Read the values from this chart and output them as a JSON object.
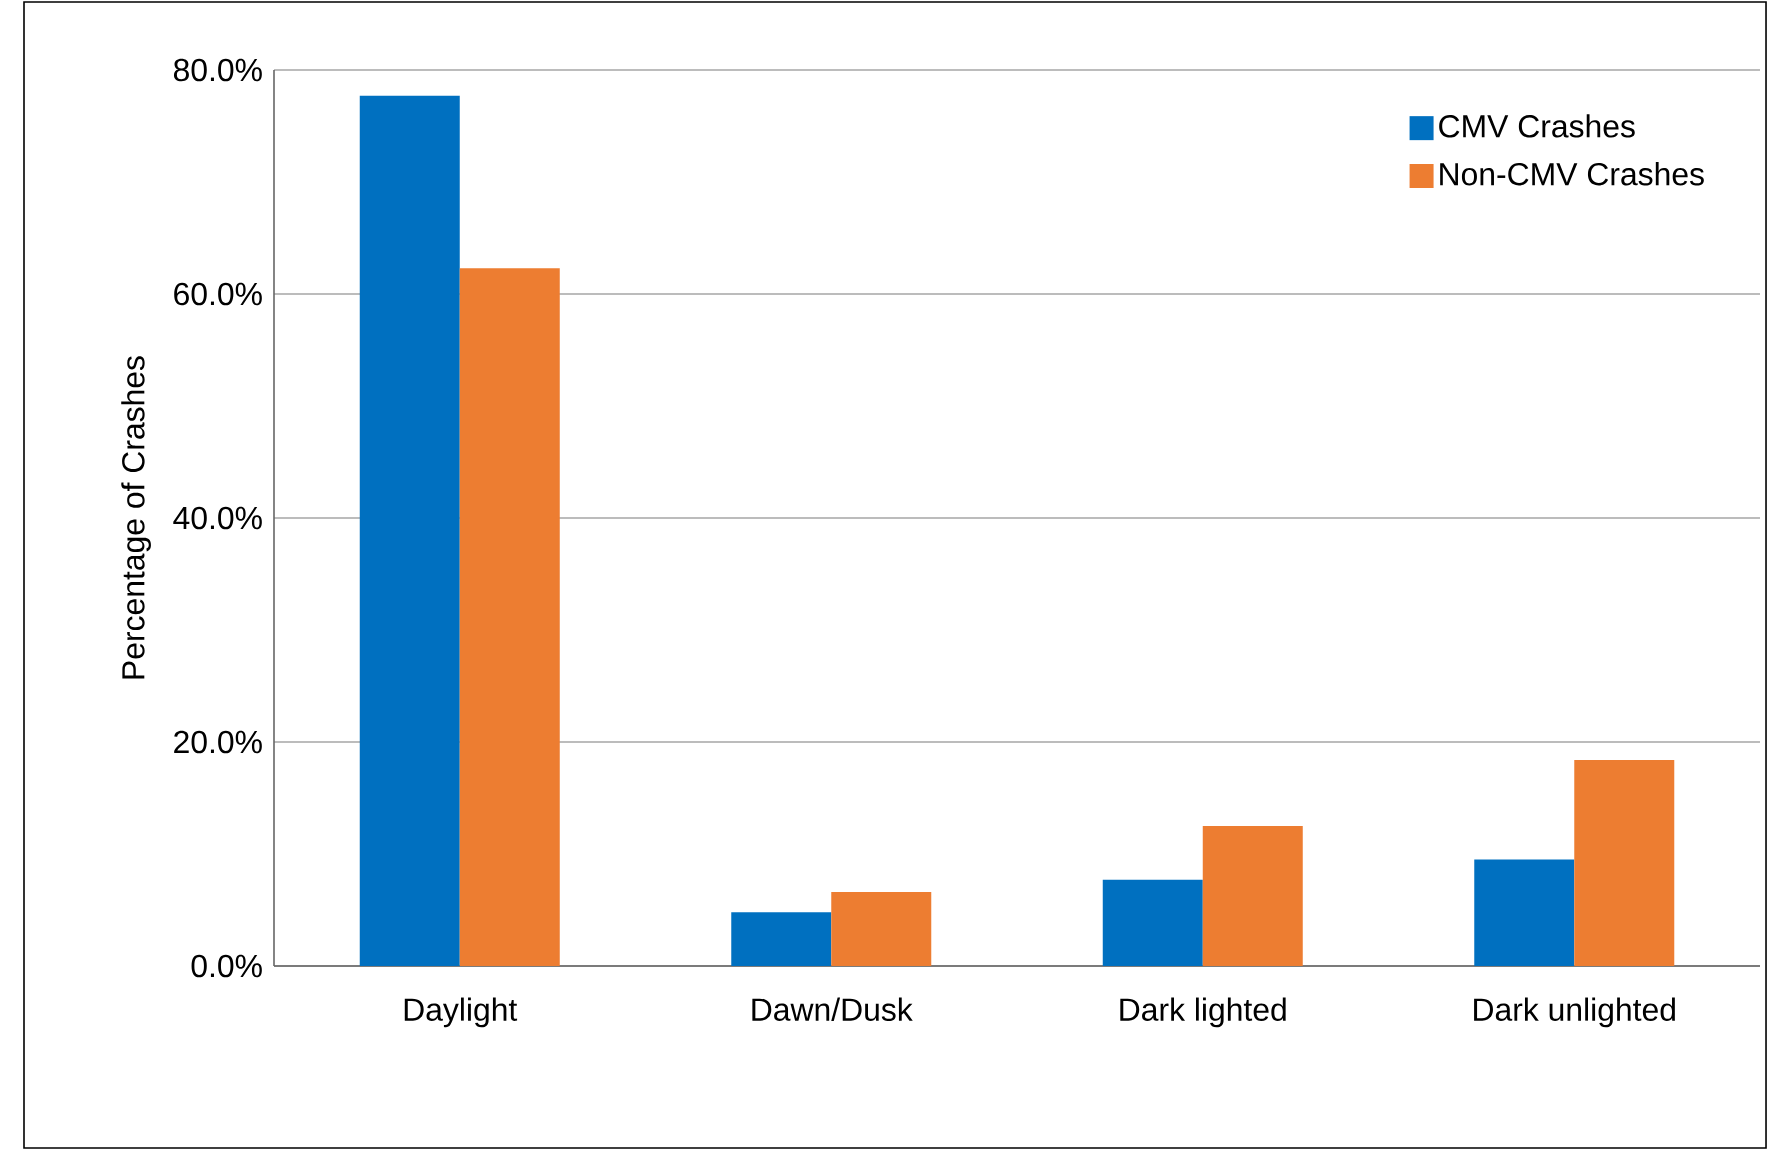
{
  "chart_data": {
    "type": "bar",
    "ylabel": "Percentage of Crashes",
    "categories": [
      "Daylight",
      "Dawn/Dusk",
      "Dark lighted",
      "Dark unlighted"
    ],
    "series": [
      {
        "name": "CMV Crashes",
        "color": "#0070c0",
        "values": [
          77.7,
          4.8,
          7.7,
          9.5
        ]
      },
      {
        "name": "Non-CMV Crashes",
        "color": "#ed7d31",
        "values": [
          62.3,
          6.6,
          12.5,
          18.4
        ]
      }
    ],
    "ylim": [
      0,
      80
    ],
    "yticks": [
      {
        "value": 0,
        "label": "0.0%"
      },
      {
        "value": 20,
        "label": "20.0%"
      },
      {
        "value": 40,
        "label": "40.0%"
      },
      {
        "value": 60,
        "label": "60.0%"
      },
      {
        "value": 80,
        "label": "80.0%"
      }
    ],
    "grid": "y",
    "legend": "top right"
  }
}
